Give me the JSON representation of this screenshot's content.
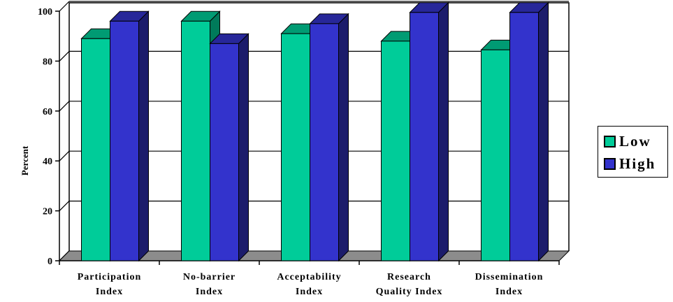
{
  "chart_data": {
    "type": "bar",
    "title": "",
    "xlabel": "",
    "ylabel": "Percent",
    "ylim": [
      0,
      100
    ],
    "yticks": [
      0,
      20,
      40,
      60,
      80,
      100
    ],
    "grid": true,
    "legend_position": "right",
    "categories": [
      [
        "Participation",
        "Index"
      ],
      [
        "No-barrier",
        "Index"
      ],
      [
        "Acceptability",
        "Index"
      ],
      [
        "Research",
        "Quality Index"
      ],
      [
        "Dissemination",
        "Index"
      ]
    ],
    "series": [
      {
        "name": "Low",
        "values": [
          89,
          96,
          91,
          88,
          84.5
        ]
      },
      {
        "name": "High",
        "values": [
          96,
          87,
          95,
          99.5,
          99.5
        ]
      }
    ],
    "colors": {
      "Low": {
        "front": "#00cc99",
        "top": "#009b73",
        "side": "#007a5a"
      },
      "High": {
        "front": "#3333cc",
        "top": "#272799",
        "side": "#1c1c6b"
      },
      "floor": "#8c8c8c"
    }
  }
}
